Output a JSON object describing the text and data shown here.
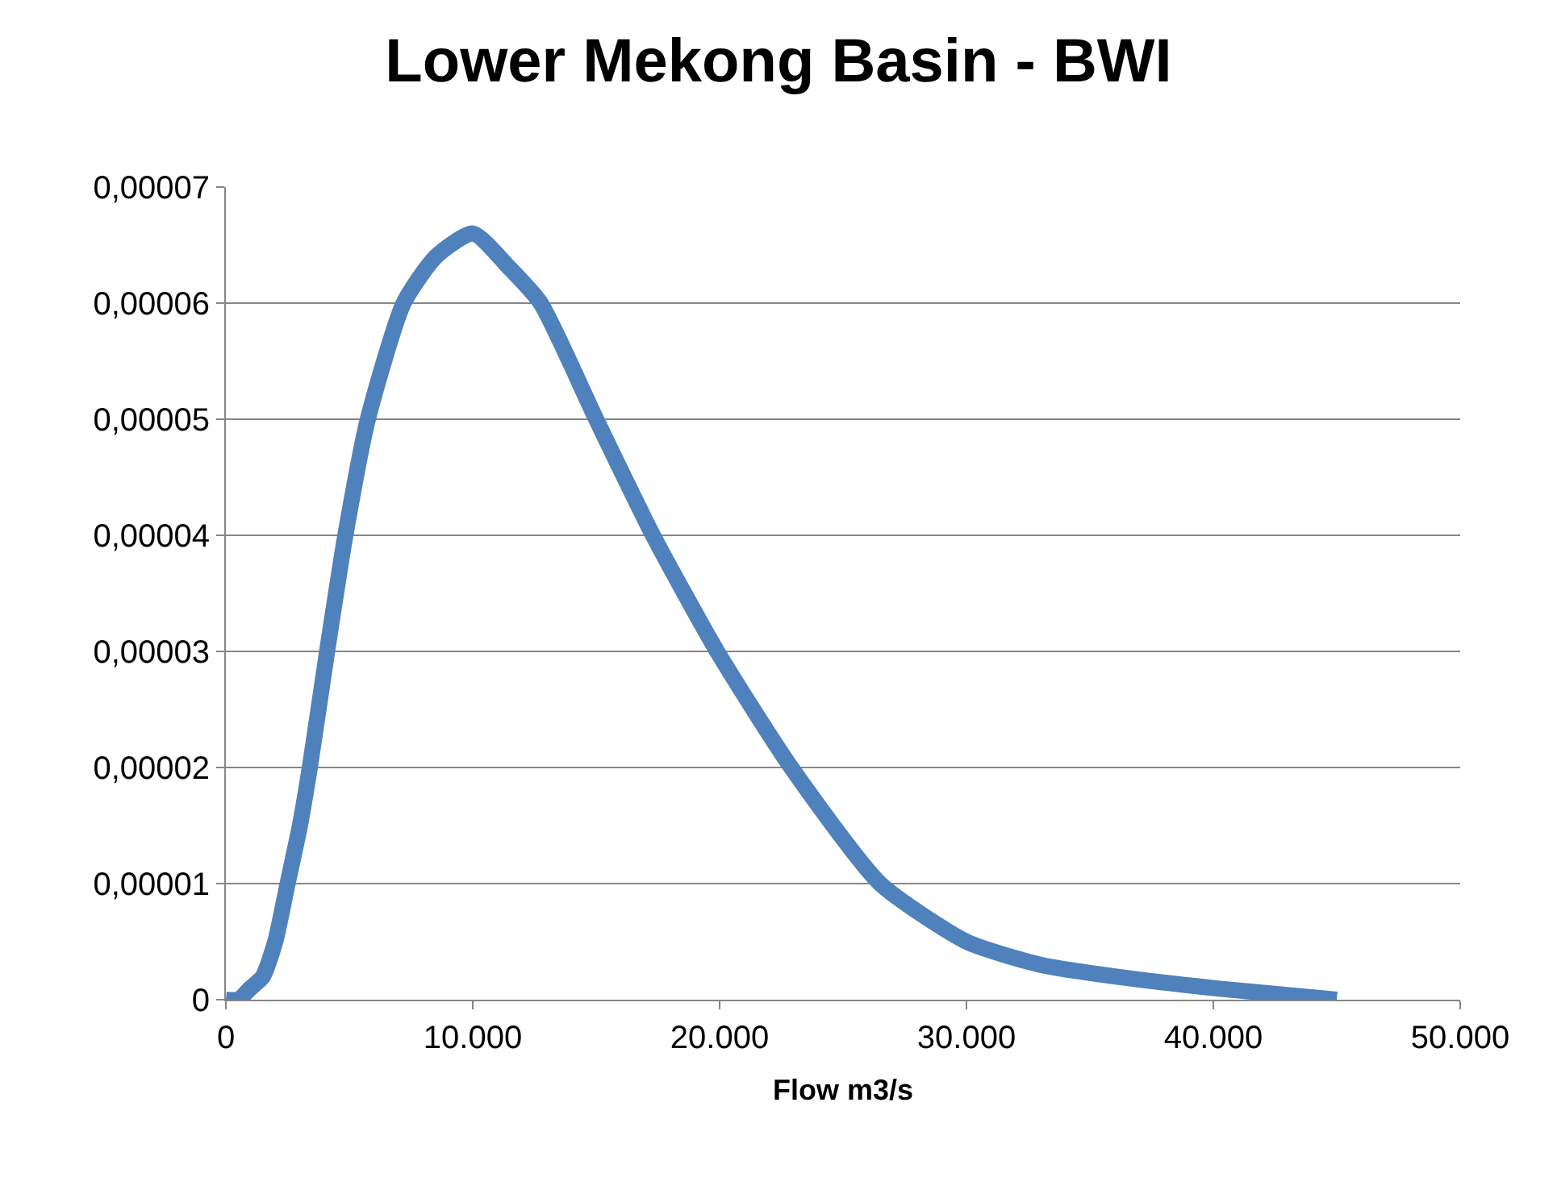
{
  "chart_data": {
    "type": "line",
    "title": "Lower Mekong Basin - BWI",
    "xlabel": "Flow m3/s",
    "x": [
      0,
      500,
      1000,
      1500,
      2000,
      2500,
      3000,
      3400,
      4100,
      4840,
      5750,
      7200,
      8500,
      10000,
      11500,
      12750,
      15000,
      17300,
      19900,
      22900,
      26500,
      30000,
      33000,
      36000,
      40000,
      45000
    ],
    "series": [
      {
        "color": "#4f81bd",
        "values": [
          0,
          0,
          1e-06,
          2e-06,
          5e-06,
          1e-05,
          1.5e-05,
          2e-05,
          3e-05,
          4e-05,
          5e-05,
          6e-05,
          6.4e-05,
          6.6e-05,
          6.3e-05,
          6e-05,
          5e-05,
          4e-05,
          3e-05,
          2e-05,
          1e-05,
          5e-06,
          3e-06,
          2e-06,
          1e-06,
          0
        ]
      }
    ],
    "xlim": [
      0,
      50000
    ],
    "xticks": [
      0,
      {
        "value": 10000,
        "label": "10.000"
      },
      {
        "value": 20000,
        "label": "20.000"
      },
      {
        "value": 30000,
        "label": "30.000"
      },
      {
        "value": 40000,
        "label": "40.000"
      },
      {
        "value": 50000,
        "label": "50.000"
      }
    ],
    "ylim": [
      0,
      7e-05
    ],
    "yticks": [
      0,
      {
        "value": 1e-05,
        "label": "0,00001"
      },
      {
        "value": 2e-05,
        "label": "0,00002"
      },
      {
        "value": 3e-05,
        "label": "0,00003"
      },
      {
        "value": 4e-05,
        "label": "0,00004"
      },
      {
        "value": 5e-05,
        "label": "0,00005"
      },
      {
        "value": 6e-05,
        "label": "0,00006"
      },
      {
        "value": 7e-05,
        "label": "0,00007"
      }
    ],
    "grid": "y",
    "marker": "none",
    "line_style": "solid"
  }
}
